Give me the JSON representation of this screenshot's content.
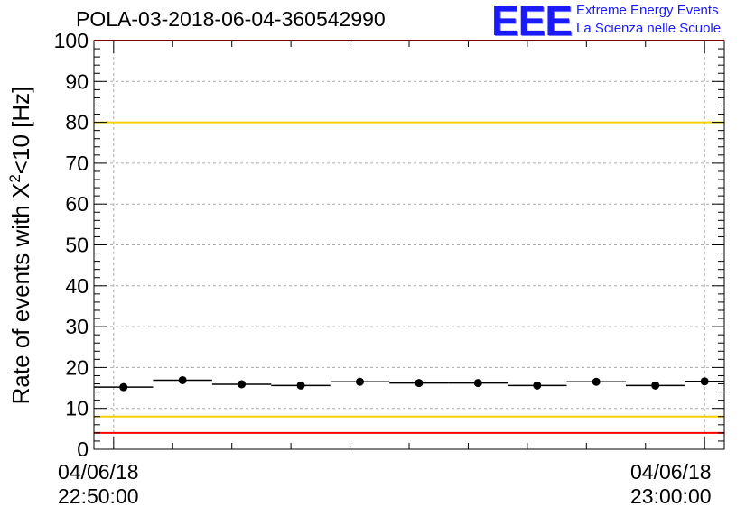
{
  "header": {
    "title": "POLA-03-2018-06-04-360542990",
    "logo_text": "EEE",
    "logo_line1": "Extreme Energy Events",
    "logo_line2": "La Scienza nelle Scuole"
  },
  "colors": {
    "data": "#000000",
    "red_limit": "#ff0000",
    "yellow_limit": "#f5d000",
    "grid": "#aaaaaa",
    "logo": "#1a1aff"
  },
  "chart_data": {
    "type": "scatter",
    "title": "POLA-03-2018-06-04-360542990",
    "ylabel": "Rate of events with X²<10 [Hz]",
    "ylabel_main": "Rate of events with X",
    "ylabel_sup": "2",
    "ylabel_tail": "<10 [Hz]",
    "ylim": [
      0,
      100
    ],
    "yticks": [
      0,
      10,
      20,
      30,
      40,
      50,
      60,
      70,
      80,
      90,
      100
    ],
    "xlim": [
      "04/06/18 22:49:40",
      "04/06/18 23:00:20"
    ],
    "xtick_labels": [
      {
        "date": "04/06/18",
        "time": "22:50:00"
      },
      {
        "date": "04/06/18",
        "time": "23:00:00"
      }
    ],
    "grid": true,
    "series": [
      {
        "x_start": [
          "22:49:40",
          "22:50:40",
          "22:51:40",
          "22:52:40",
          "22:53:40",
          "22:54:40",
          "22:55:40",
          "22:56:40",
          "22:57:40",
          "22:58:40",
          "22:59:40"
        ],
        "x_end": [
          "22:50:40",
          "22:51:40",
          "22:52:40",
          "22:53:40",
          "22:54:40",
          "22:55:40",
          "22:56:40",
          "22:57:40",
          "22:58:40",
          "22:59:40",
          "23:00:20"
        ],
        "x": [
          "22:50:10",
          "22:51:10",
          "22:52:10",
          "22:53:10",
          "22:54:10",
          "22:55:10",
          "22:56:10",
          "22:57:10",
          "22:58:10",
          "22:59:10",
          "23:00:00"
        ],
        "values": [
          15.2,
          16.9,
          15.9,
          15.6,
          16.5,
          16.2,
          16.2,
          15.6,
          16.5,
          15.6,
          16.6
        ]
      }
    ],
    "reference_lines": [
      {
        "value": 100,
        "color": "red"
      },
      {
        "value": 80,
        "color": "yellow"
      },
      {
        "value": 8,
        "color": "yellow"
      },
      {
        "value": 4,
        "color": "red"
      }
    ]
  }
}
